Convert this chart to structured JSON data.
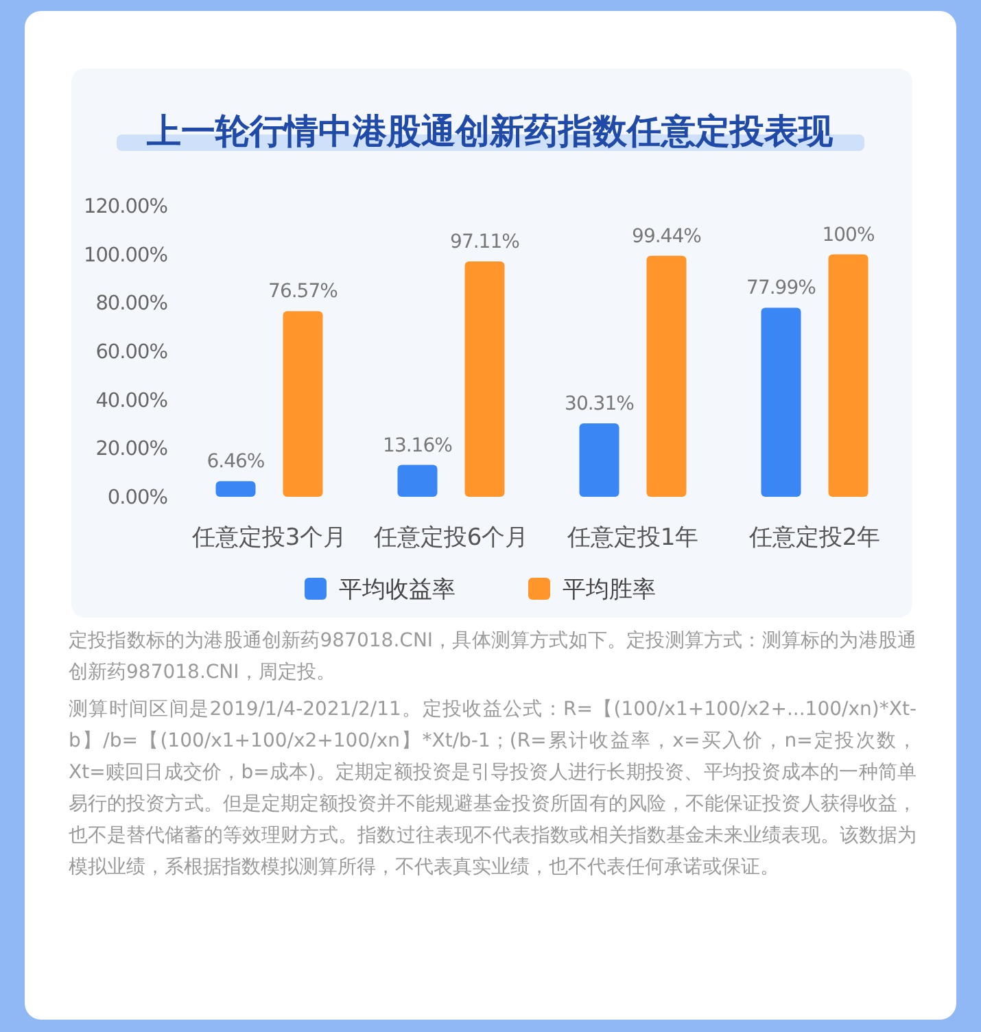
{
  "chart_data": {
    "type": "bar",
    "title": "上一轮行情中港股通创新药指数任意定投表现",
    "categories": [
      "任意定投3个月",
      "任意定投6个月",
      "任意定投1年",
      "任意定投2年"
    ],
    "series": [
      {
        "name": "平均收益率",
        "color": "#3a86f5",
        "values": [
          6.46,
          13.16,
          30.31,
          77.99
        ],
        "value_labels": [
          "6.46%",
          "13.16%",
          "30.31%",
          "77.99%"
        ]
      },
      {
        "name": "平均胜率",
        "color": "#ff952b",
        "values": [
          76.57,
          97.11,
          99.44,
          100
        ],
        "value_labels": [
          "76.57%",
          "97.11%",
          "99.44%",
          "100%"
        ]
      }
    ],
    "ylim": [
      0,
      120
    ],
    "yticks": [
      {
        "value": 0,
        "label": "0.00%"
      },
      {
        "value": 20,
        "label": "20.00%"
      },
      {
        "value": 40,
        "label": "40.00%"
      },
      {
        "value": 60,
        "label": "60.00%"
      },
      {
        "value": 80,
        "label": "80.00%"
      },
      {
        "value": 100,
        "label": "100.00%"
      },
      {
        "value": 120,
        "label": "120.00%"
      }
    ],
    "legend": "bottom",
    "grid": false,
    "annotations": [
      "定投指数标的为港股通创新药987018.CNI，具体测算方式如下。定投测算方式：测算标的为港股通创新药987018.CNI，周定投。",
      "测算时间区间是2019/1/4-2021/2/11。定投收益公式：R=【(100/x1+100/x2+...100/xn)*Xt-b】/b=【(100/x1+100/x2+100/xn】*Xt/b-1；(R=累计收益率，x=买入价，n=定投次数，Xt=赎回日成交价，b=成本)。定期定额投资是引导投资人进行长期投资、平均投资成本的一种简单易行的投资方式。但是定期定额投资并不能规避基金投资所固有的风险，不能保证投资人获得收益，也不是替代储蓄的等效理财方式。指数过往表现不代表指数或相关指数基金未来业绩表现。该数据为模拟业绩，系根据指数模拟测算所得，不代表真实业绩，也不代表任何承诺或保证。"
    ]
  }
}
